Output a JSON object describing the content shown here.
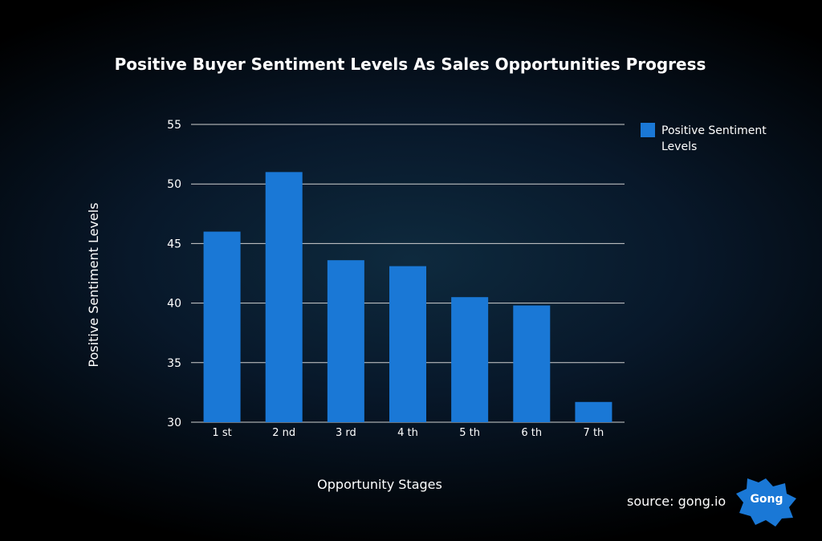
{
  "chart_data": {
    "type": "bar",
    "title": "Positive Buyer Sentiment Levels As Sales Opportunities Progress",
    "xlabel": "Opportunity Stages",
    "ylabel": "Positive Sentiment Levels",
    "categories": [
      "1 st",
      "2 nd",
      "3 rd",
      "4 th",
      "5 th",
      "6 th",
      "7 th"
    ],
    "series": [
      {
        "name": "Positive Sentiment Levels",
        "values": [
          46.0,
          51.0,
          43.6,
          43.1,
          40.5,
          39.8,
          31.7
        ]
      }
    ],
    "ylim": [
      30,
      55
    ],
    "yticks": [
      30,
      35,
      40,
      45,
      50,
      55
    ],
    "grid": true,
    "legend_placement": "top-right",
    "bar_color": "#1a78d6"
  },
  "footer": {
    "source": "source: gong.io",
    "logo_text": "Gong"
  },
  "colors": {
    "logo": "#1a78d6",
    "grid": "#d0d0d0"
  }
}
